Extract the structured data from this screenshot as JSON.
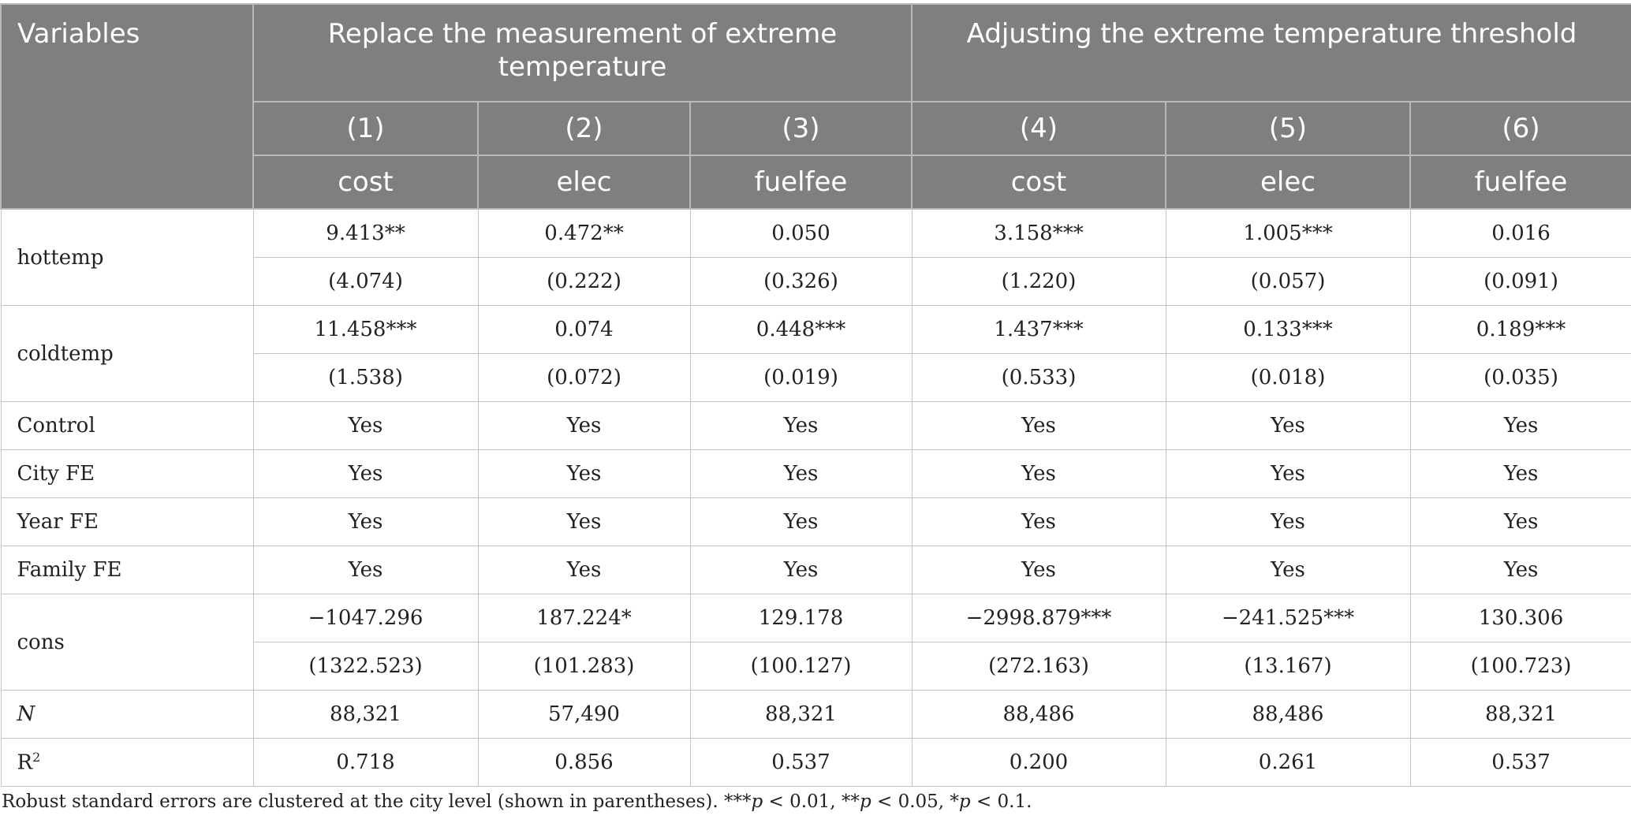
{
  "header": {
    "variables": "Variables",
    "group1": "Replace the measurement of extreme temperature",
    "group2": "Adjusting the extreme temperature threshold",
    "col_numbers": [
      "(1)",
      "(2)",
      "(3)",
      "(4)",
      "(5)",
      "(6)"
    ],
    "dep_vars": [
      "cost",
      "elec",
      "fuelfee",
      "cost",
      "elec",
      "fuelfee"
    ]
  },
  "rows": {
    "hottemp": {
      "label": "hottemp",
      "coef": [
        "9.413**",
        "0.472**",
        "0.050",
        "3.158***",
        "1.005***",
        "0.016"
      ],
      "se": [
        "(4.074)",
        "(0.222)",
        "(0.326)",
        "(1.220)",
        "(0.057)",
        "(0.091)"
      ]
    },
    "coldtemp": {
      "label": "coldtemp",
      "coef": [
        "11.458***",
        "0.074",
        "0.448***",
        "1.437***",
        "0.133***",
        "0.189***"
      ],
      "se": [
        "(1.538)",
        "(0.072)",
        "(0.019)",
        "(0.533)",
        "(0.018)",
        "(0.035)"
      ]
    },
    "control": {
      "label": "Control",
      "values": [
        "Yes",
        "Yes",
        "Yes",
        "Yes",
        "Yes",
        "Yes"
      ]
    },
    "city_fe": {
      "label": "City FE",
      "values": [
        "Yes",
        "Yes",
        "Yes",
        "Yes",
        "Yes",
        "Yes"
      ]
    },
    "year_fe": {
      "label": "Year FE",
      "values": [
        "Yes",
        "Yes",
        "Yes",
        "Yes",
        "Yes",
        "Yes"
      ]
    },
    "family_fe": {
      "label": "Family FE",
      "values": [
        "Yes",
        "Yes",
        "Yes",
        "Yes",
        "Yes",
        "Yes"
      ]
    },
    "cons": {
      "label": "cons",
      "coef": [
        "−1047.296",
        "187.224*",
        "129.178",
        "−2998.879***",
        "−241.525***",
        "130.306"
      ],
      "se": [
        "(1322.523)",
        "(101.283)",
        "(100.127)",
        "(272.163)",
        "(13.167)",
        "(100.723)"
      ]
    },
    "n": {
      "label": "N",
      "values": [
        "88,321",
        "57,490",
        "88,321",
        "88,486",
        "88,486",
        "88,321"
      ]
    },
    "r2": {
      "label": "R",
      "label_sup": "2",
      "values": [
        "0.718",
        "0.856",
        "0.537",
        "0.200",
        "0.261",
        "0.537"
      ]
    }
  },
  "note": {
    "text1": "Robust standard errors are clustered at the city level (shown in parentheses). ***",
    "p": "p",
    "text2": " < 0.01, **",
    "text3": " < 0.05, *",
    "text4": " < 0.1."
  }
}
